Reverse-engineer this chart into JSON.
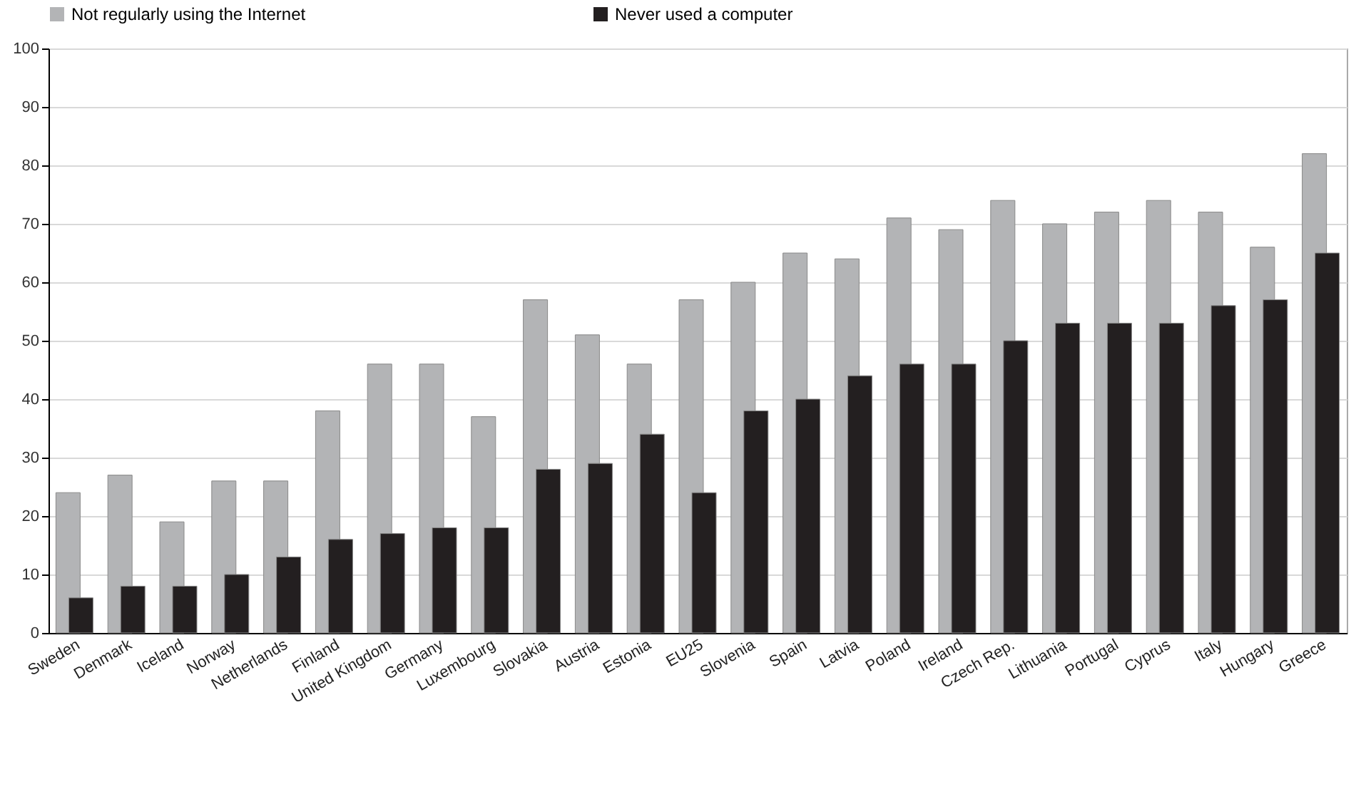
{
  "chart_data": {
    "type": "bar",
    "categories": [
      "Sweden",
      "Denmark",
      "Iceland",
      "Norway",
      "Netherlands",
      "Finland",
      "United Kingdom",
      "Germany",
      "Luxembourg",
      "Slovakia",
      "Austria",
      "Estonia",
      "EU25",
      "Slovenia",
      "Spain",
      "Latvia",
      "Poland",
      "Ireland",
      "Czech Rep.",
      "Lithuania",
      "Portugal",
      "Cyprus",
      "Italy",
      "Hungary",
      "Greece"
    ],
    "series": [
      {
        "name": "Not regularly using the Internet",
        "color": "#b3b4b6",
        "values": [
          24,
          27,
          19,
          26,
          26,
          38,
          46,
          46,
          37,
          57,
          51,
          46,
          57,
          60,
          65,
          64,
          71,
          69,
          74,
          70,
          72,
          74,
          72,
          66,
          82
        ]
      },
      {
        "name": "Never used a computer",
        "color": "#231f20",
        "values": [
          6,
          8,
          8,
          10,
          13,
          16,
          17,
          18,
          18,
          28,
          29,
          34,
          24,
          38,
          40,
          44,
          46,
          46,
          50,
          53,
          53,
          53,
          56,
          57,
          65
        ]
      }
    ],
    "ylim": [
      0,
      100
    ],
    "yticks": [
      0,
      10,
      20,
      30,
      40,
      50,
      60,
      70,
      80,
      90,
      100
    ],
    "grid": "y",
    "legend": "top"
  }
}
